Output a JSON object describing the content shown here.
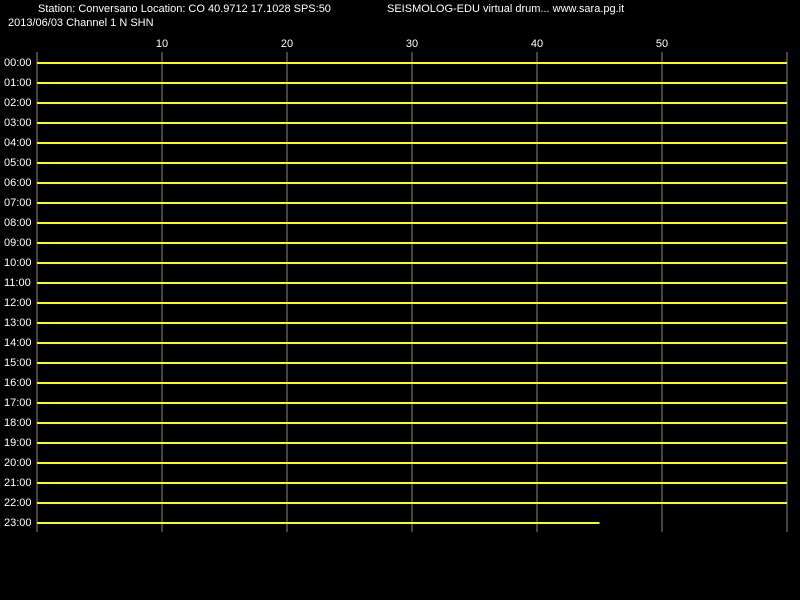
{
  "chart_data": {
    "type": "drum",
    "header": [
      "Station: Conversano Location: CO 40.9712 17.1028 SPS:50",
      "SEISMOLOG-EDU virtual drum... www.sara.pg.it",
      "2013/06/03  Channel 1 N SHN"
    ],
    "categories": [
      "00:00",
      "01:00",
      "02:00",
      "03:00",
      "04:00",
      "05:00",
      "06:00",
      "07:00",
      "08:00",
      "09:00",
      "10:00",
      "11:00",
      "12:00",
      "13:00",
      "14:00",
      "15:00",
      "16:00",
      "17:00",
      "18:00",
      "19:00",
      "20:00",
      "21:00",
      "22:00",
      "23:00"
    ],
    "values": [
      60,
      60,
      60,
      60,
      60,
      60,
      60,
      60,
      60,
      60,
      60,
      60,
      60,
      60,
      60,
      60,
      60,
      60,
      60,
      60,
      60,
      60,
      60,
      45
    ],
    "color": "#ffff00",
    "xlim": [
      0,
      60
    ],
    "xticks": [
      10,
      20,
      30,
      40,
      50
    ],
    "grid": true
  }
}
